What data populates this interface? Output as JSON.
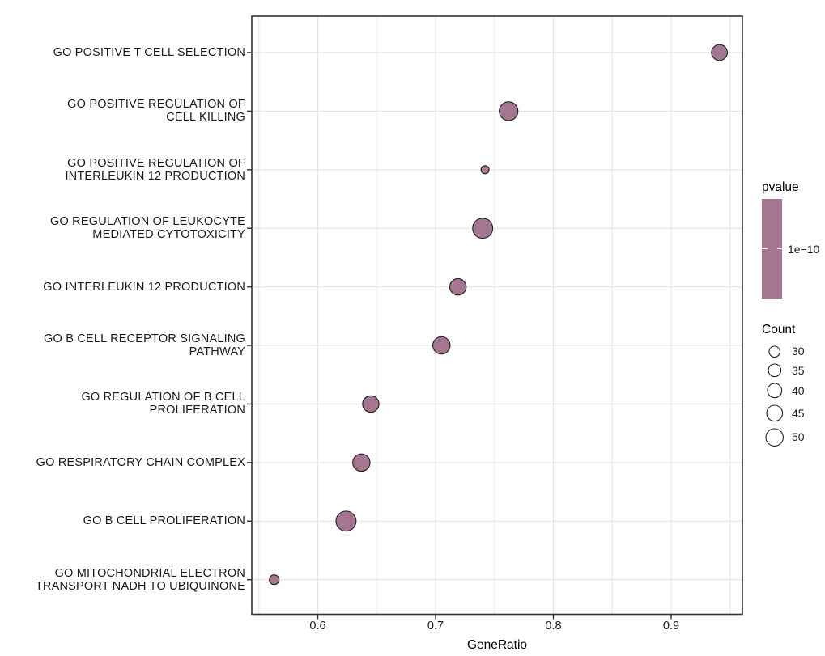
{
  "figure": {
    "background": "#ffffff"
  },
  "chart_data": {
    "type": "scatter",
    "variant": "go-enrichment-dot-plot",
    "xlabel": "GeneRatio",
    "categories": [
      "GO POSITIVE T CELL SELECTION",
      "GO POSITIVE REGULATION OF\nCELL KILLING",
      "GO POSITIVE REGULATION OF\nINTERLEUKIN 12 PRODUCTION",
      "GO REGULATION OF LEUKOCYTE\nMEDIATED CYTOTOXICITY",
      "GO INTERLEUKIN 12 PRODUCTION",
      "GO B CELL RECEPTOR SIGNALING\nPATHWAY",
      "GO REGULATION OF B CELL\nPROLIFERATION",
      "GO RESPIRATORY CHAIN COMPLEX",
      "GO B CELL PROLIFERATION",
      "GO MITOCHONDRIAL ELECTRON\nTRANSPORT NADH TO UBIQUINONE"
    ],
    "gene_ratio": [
      0.941,
      0.762,
      0.742,
      0.74,
      0.719,
      0.705,
      0.645,
      0.637,
      0.624,
      0.563
    ],
    "count": [
      45,
      55,
      23,
      60,
      47,
      50,
      47,
      50,
      60,
      27
    ],
    "x_ticks": [
      "0.6",
      "0.7",
      "0.8",
      "0.9"
    ],
    "x_gridlines": [
      0.55,
      0.6,
      0.65,
      0.7,
      0.75,
      0.8,
      0.85,
      0.9,
      0.95
    ],
    "xlim": [
      0.5443,
      0.9605
    ],
    "grid": true,
    "legend_position": "right",
    "point_color": "#A5768F",
    "point_stroke_color": "#1f1f1f",
    "legend_pvalue": {
      "title": "pvalue",
      "tick_label": "1e−10",
      "bar_color": "#A5768F"
    },
    "legend_count": {
      "title": "Count",
      "entries": [
        "30",
        "35",
        "40",
        "45",
        "50"
      ],
      "entry_values": [
        30,
        35,
        40,
        45,
        50
      ]
    },
    "size_scale": {
      "domain": [
        30,
        50
      ],
      "radius_px": [
        6.7,
        10.7
      ]
    }
  },
  "colors": {
    "gridline": "#e6e6e6",
    "panel_border": "#333333",
    "tick_mark": "#333333",
    "axis_text": "#1a1a1a"
  }
}
